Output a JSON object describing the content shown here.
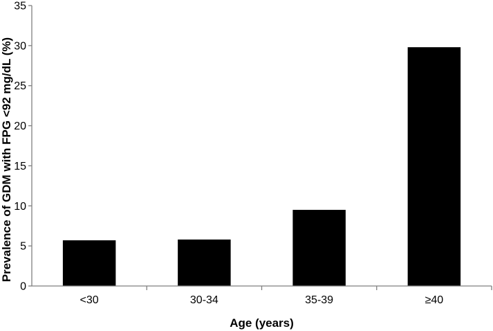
{
  "chart_data": {
    "type": "bar",
    "categories": [
      "<30",
      "30-34",
      "35-39",
      "≥40"
    ],
    "values": [
      5.7,
      5.8,
      9.5,
      29.8
    ],
    "xlabel": "Age (years)",
    "ylabel": "Prevalence of GDM with FPG <92 mg/dL (%)",
    "ylim": [
      0,
      35
    ],
    "yticks": [
      0,
      5,
      10,
      15,
      20,
      25,
      30,
      35
    ],
    "grid": false,
    "legend": "none",
    "bar_color": "#000000",
    "axis_color": "#7f7f7f"
  }
}
